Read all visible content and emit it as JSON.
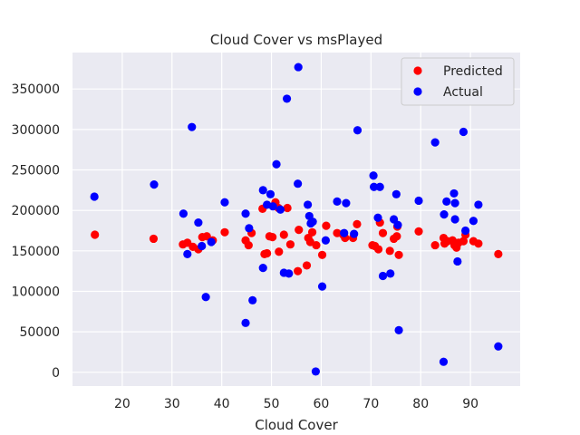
{
  "chart_data": {
    "type": "scatter",
    "title": "Cloud Cover vs msPlayed",
    "xlabel": "Cloud Cover",
    "ylabel": "msPlayed",
    "xlim": [
      10,
      100
    ],
    "ylim": [
      -17000,
      395000
    ],
    "xticks": [
      20,
      30,
      40,
      50,
      60,
      70,
      80,
      90
    ],
    "yticks": [
      0,
      50000,
      100000,
      150000,
      200000,
      250000,
      300000,
      350000
    ],
    "grid": true,
    "legend_position": "top-right",
    "colors": {
      "background": "#eaeaf2",
      "grid": "#ffffff",
      "predicted": "#ff0000",
      "actual": "#0000ff"
    },
    "series": [
      {
        "name": "Predicted",
        "color": "#ff0000",
        "points": [
          [
            14.5,
            170000
          ],
          [
            26.3,
            165000
          ],
          [
            32.2,
            158000
          ],
          [
            33.1,
            160000
          ],
          [
            34.2,
            155000
          ],
          [
            35.3,
            152000
          ],
          [
            36.1,
            167000
          ],
          [
            37.0,
            168000
          ],
          [
            38.2,
            163000
          ],
          [
            40.6,
            173000
          ],
          [
            44.8,
            163000
          ],
          [
            45.4,
            157000
          ],
          [
            46.0,
            172000
          ],
          [
            48.2,
            202000
          ],
          [
            48.6,
            146000
          ],
          [
            49.1,
            147000
          ],
          [
            49.6,
            168000
          ],
          [
            50.2,
            167000
          ],
          [
            50.8,
            210000
          ],
          [
            51.4,
            203000
          ],
          [
            51.5,
            149000
          ],
          [
            52.5,
            170000
          ],
          [
            53.2,
            203000
          ],
          [
            53.8,
            158000
          ],
          [
            55.3,
            125000
          ],
          [
            55.5,
            176000
          ],
          [
            57.1,
            132000
          ],
          [
            57.4,
            166000
          ],
          [
            57.8,
            161000
          ],
          [
            58.2,
            173000
          ],
          [
            59.0,
            157000
          ],
          [
            60.2,
            145000
          ],
          [
            61.0,
            181000
          ],
          [
            63.2,
            172000
          ],
          [
            64.4,
            170000
          ],
          [
            64.8,
            166000
          ],
          [
            66.4,
            166000
          ],
          [
            67.2,
            183000
          ],
          [
            70.3,
            157000
          ],
          [
            70.8,
            156000
          ],
          [
            71.5,
            152000
          ],
          [
            71.8,
            185000
          ],
          [
            72.4,
            172000
          ],
          [
            73.8,
            150000
          ],
          [
            74.6,
            165000
          ],
          [
            75.2,
            168000
          ],
          [
            75.6,
            145000
          ],
          [
            75.3,
            180000
          ],
          [
            79.6,
            174000
          ],
          [
            82.9,
            157000
          ],
          [
            84.6,
            166000
          ],
          [
            84.8,
            159000
          ],
          [
            85.4,
            162000
          ],
          [
            86.4,
            163000
          ],
          [
            86.8,
            157000
          ],
          [
            87.2,
            154000
          ],
          [
            87.6,
            160000
          ],
          [
            88.6,
            162000
          ],
          [
            89.0,
            170000
          ],
          [
            90.6,
            162000
          ],
          [
            91.6,
            159000
          ],
          [
            95.6,
            146000
          ]
        ]
      },
      {
        "name": "Actual",
        "color": "#0000ff",
        "points": [
          [
            14.4,
            217000
          ],
          [
            26.4,
            232000
          ],
          [
            32.3,
            196000
          ],
          [
            33.1,
            146000
          ],
          [
            34.0,
            303000
          ],
          [
            35.3,
            185000
          ],
          [
            36.0,
            156000
          ],
          [
            36.8,
            93000
          ],
          [
            37.9,
            161000
          ],
          [
            40.6,
            210000
          ],
          [
            44.8,
            196000
          ],
          [
            44.8,
            61000
          ],
          [
            45.5,
            178000
          ],
          [
            46.2,
            89000
          ],
          [
            48.3,
            225000
          ],
          [
            48.3,
            129000
          ],
          [
            49.1,
            207000
          ],
          [
            49.8,
            220000
          ],
          [
            50.3,
            205000
          ],
          [
            51.0,
            257000
          ],
          [
            51.8,
            201000
          ],
          [
            52.5,
            123000
          ],
          [
            53.1,
            338000
          ],
          [
            53.5,
            122000
          ],
          [
            55.3,
            233000
          ],
          [
            55.4,
            377000
          ],
          [
            57.3,
            207000
          ],
          [
            57.6,
            193000
          ],
          [
            57.9,
            184000
          ],
          [
            58.3,
            186000
          ],
          [
            58.9,
            1000
          ],
          [
            60.2,
            106000
          ],
          [
            60.9,
            163000
          ],
          [
            63.2,
            211000
          ],
          [
            64.6,
            172000
          ],
          [
            65.0,
            209000
          ],
          [
            66.6,
            171000
          ],
          [
            67.3,
            299000
          ],
          [
            70.5,
            243000
          ],
          [
            70.6,
            229000
          ],
          [
            71.4,
            191000
          ],
          [
            71.8,
            229000
          ],
          [
            72.4,
            119000
          ],
          [
            73.9,
            122000
          ],
          [
            74.6,
            189000
          ],
          [
            75.1,
            220000
          ],
          [
            75.4,
            182000
          ],
          [
            75.6,
            52000
          ],
          [
            79.6,
            212000
          ],
          [
            82.9,
            284000
          ],
          [
            84.6,
            13000
          ],
          [
            84.7,
            195000
          ],
          [
            85.2,
            211000
          ],
          [
            86.7,
            221000
          ],
          [
            86.9,
            209000
          ],
          [
            86.9,
            189000
          ],
          [
            87.4,
            137000
          ],
          [
            88.6,
            297000
          ],
          [
            89.0,
            175000
          ],
          [
            90.6,
            187000
          ],
          [
            91.6,
            207000
          ],
          [
            95.6,
            32000
          ]
        ]
      }
    ]
  }
}
